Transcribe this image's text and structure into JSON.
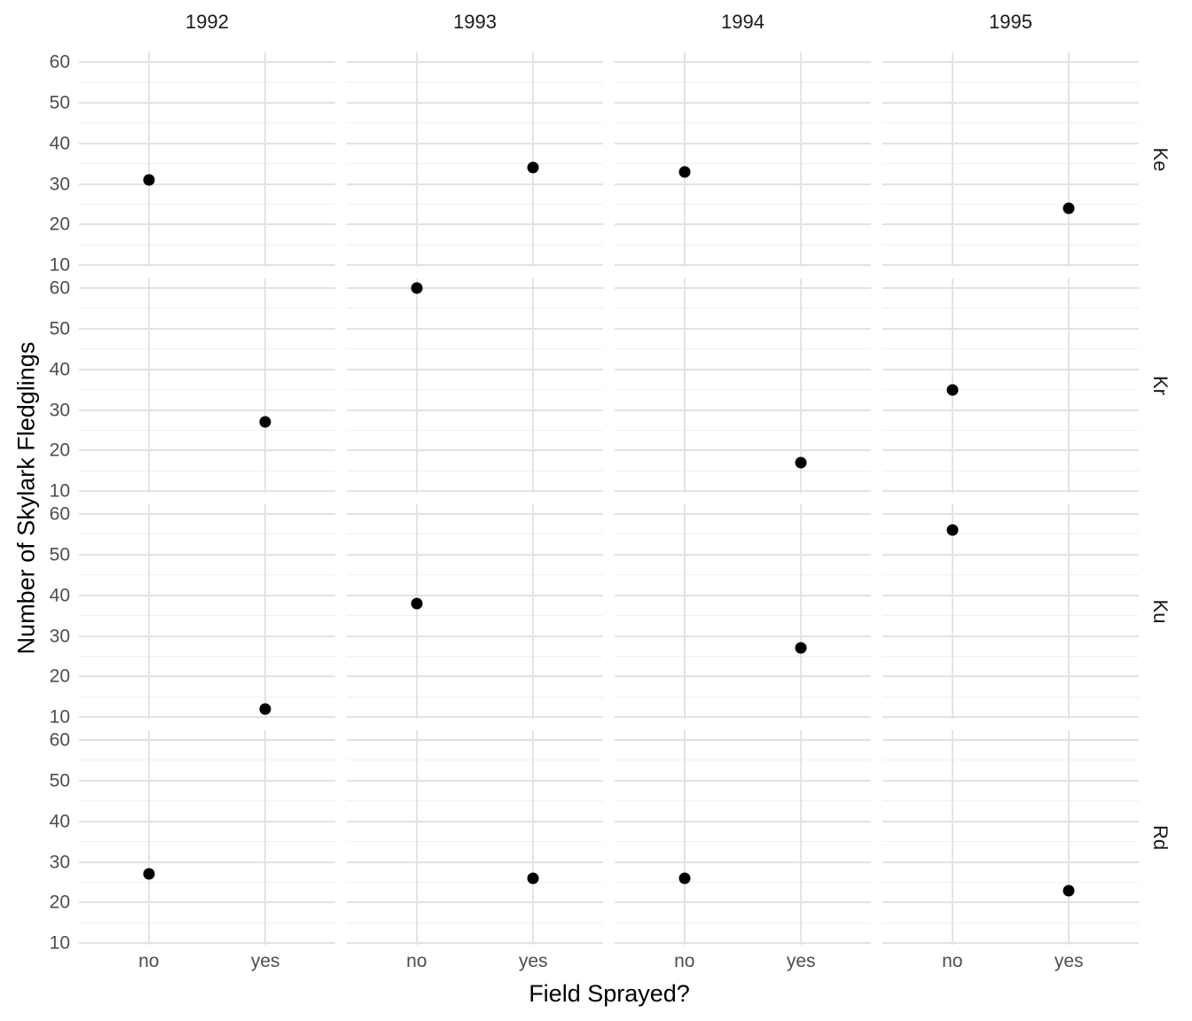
{
  "chart_data": {
    "type": "scatter",
    "title": "",
    "xlabel": "Field Sprayed?",
    "ylabel": "Number of Skylark Fledglings",
    "facet_cols": [
      "1992",
      "1993",
      "1994",
      "1995"
    ],
    "facet_rows": [
      "Ke",
      "Kr",
      "Ku",
      "Rd"
    ],
    "x_categories": [
      "no",
      "yes"
    ],
    "y_ticks": [
      10,
      20,
      30,
      40,
      50,
      60
    ],
    "y_minor_ticks": [
      15,
      25,
      35,
      45,
      55
    ],
    "ylim": [
      9.6,
      62.4
    ],
    "grid": "major and minor horizontal lines, vertical lines at categories, no panel border",
    "legend": "none",
    "points": [
      {
        "row": "Ke",
        "col": "1992",
        "x": "no",
        "y": 31
      },
      {
        "row": "Ke",
        "col": "1993",
        "x": "yes",
        "y": 34
      },
      {
        "row": "Ke",
        "col": "1994",
        "x": "no",
        "y": 33
      },
      {
        "row": "Ke",
        "col": "1995",
        "x": "yes",
        "y": 24
      },
      {
        "row": "Kr",
        "col": "1992",
        "x": "yes",
        "y": 27
      },
      {
        "row": "Kr",
        "col": "1993",
        "x": "no",
        "y": 60
      },
      {
        "row": "Kr",
        "col": "1994",
        "x": "yes",
        "y": 17
      },
      {
        "row": "Kr",
        "col": "1995",
        "x": "no",
        "y": 35
      },
      {
        "row": "Ku",
        "col": "1992",
        "x": "yes",
        "y": 12
      },
      {
        "row": "Ku",
        "col": "1993",
        "x": "no",
        "y": 38
      },
      {
        "row": "Ku",
        "col": "1994",
        "x": "yes",
        "y": 27
      },
      {
        "row": "Ku",
        "col": "1995",
        "x": "no",
        "y": 56
      },
      {
        "row": "Rd",
        "col": "1992",
        "x": "no",
        "y": 27
      },
      {
        "row": "Rd",
        "col": "1993",
        "x": "yes",
        "y": 26
      },
      {
        "row": "Rd",
        "col": "1994",
        "x": "no",
        "y": 26
      },
      {
        "row": "Rd",
        "col": "1995",
        "x": "yes",
        "y": 23
      }
    ],
    "colors": {
      "point": "#000000",
      "grid_major": "#e2e2e2",
      "grid_minor": "#f0f0f0",
      "tick_label": "#4d4d4d",
      "facet_label": "#1a1a1a",
      "axis_title": "#000000",
      "background": "#ffffff"
    }
  }
}
